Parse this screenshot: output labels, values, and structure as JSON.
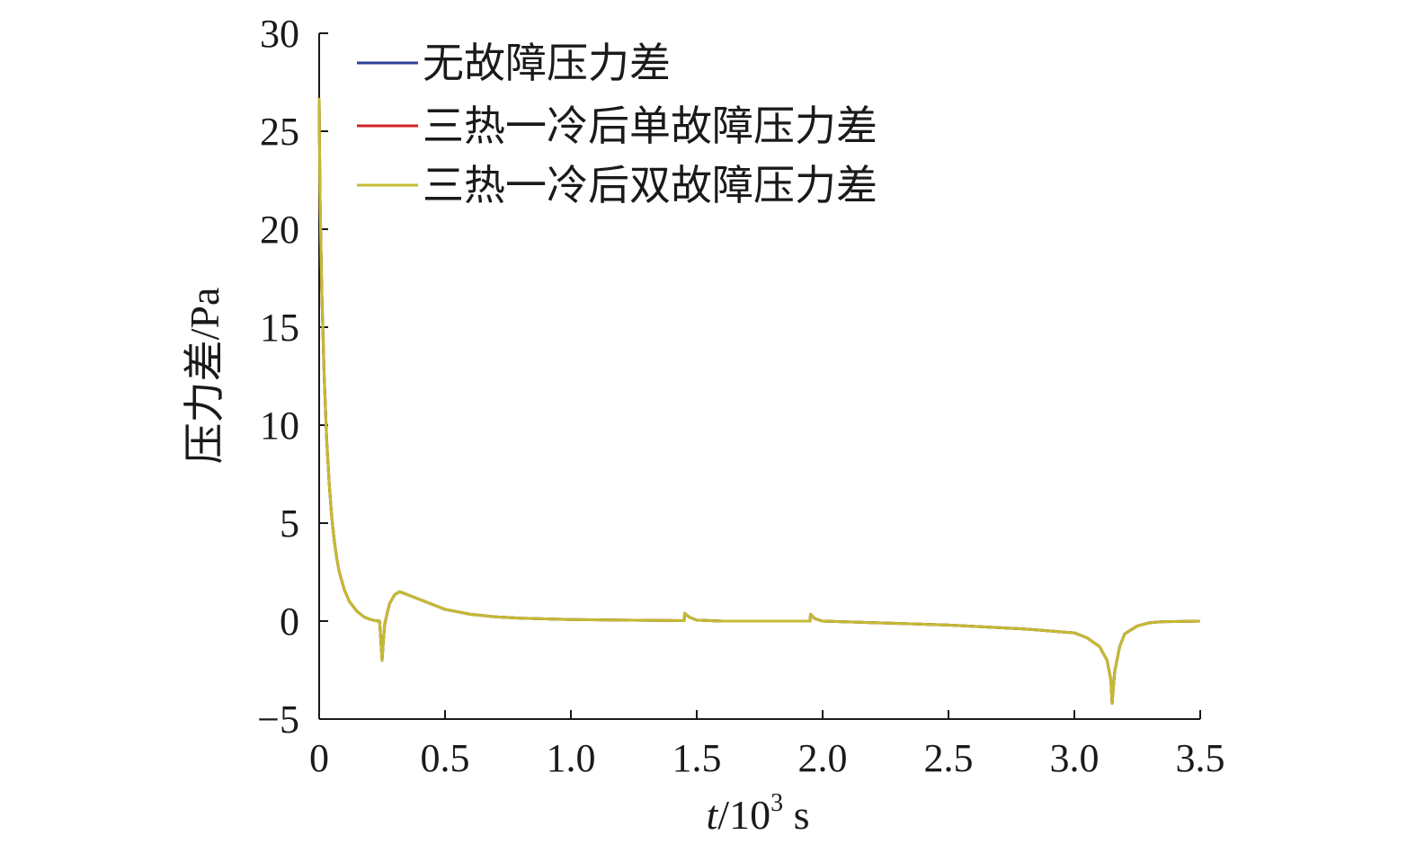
{
  "chart_data": {
    "type": "line",
    "title": "",
    "xlabel": {
      "var": "t",
      "rest": "/10",
      "sup": "3",
      "unit": " s"
    },
    "ylabel": "压力差/Pa",
    "xlim": [
      0,
      3.5
    ],
    "ylim": [
      -5,
      30
    ],
    "xticks": [
      0,
      0.5,
      1.0,
      1.5,
      2.0,
      2.5,
      3.0,
      3.5
    ],
    "xtick_labels": [
      "0",
      "0.5",
      "1.0",
      "1.5",
      "2.0",
      "2.5",
      "3.0",
      "3.5"
    ],
    "yticks": [
      -5,
      0,
      5,
      10,
      15,
      20,
      25,
      30
    ],
    "ytick_labels": [
      "−5",
      "0",
      "5",
      "10",
      "15",
      "20",
      "25",
      "30"
    ],
    "grid": false,
    "legend_position": "top-left",
    "series": [
      {
        "name": "无故障压力差",
        "color": "#2e3f97",
        "x": [
          0,
          0.003,
          0.01,
          0.02,
          0.03,
          0.04,
          0.05,
          0.06,
          0.07,
          0.08,
          0.1,
          0.12,
          0.15,
          0.18,
          0.2,
          0.22,
          0.24,
          0.245,
          0.25,
          0.255,
          0.26,
          0.27,
          0.28,
          0.3,
          0.32,
          0.35,
          0.4,
          0.5,
          0.6,
          0.7,
          0.8,
          1.0,
          1.2,
          1.4,
          1.45,
          1.452,
          1.47,
          1.5,
          1.6,
          1.8,
          1.95,
          1.952,
          1.97,
          2.0,
          2.2,
          2.5,
          2.8,
          3.0,
          3.05,
          3.1,
          3.13,
          3.145,
          3.15,
          3.16,
          3.18,
          3.2,
          3.25,
          3.3,
          3.35,
          3.4,
          3.5
        ],
        "y": [
          26.7,
          22.0,
          17.0,
          12.5,
          9.2,
          7.0,
          5.3,
          4.1,
          3.2,
          2.5,
          1.6,
          1.0,
          0.5,
          0.2,
          0.1,
          0.03,
          0.0,
          -1.0,
          -2.0,
          -1.0,
          -0.2,
          0.4,
          0.9,
          1.35,
          1.5,
          1.35,
          1.1,
          0.6,
          0.35,
          0.22,
          0.15,
          0.08,
          0.05,
          0.03,
          0.02,
          0.4,
          0.2,
          0.05,
          0.0,
          0.0,
          0.0,
          0.35,
          0.12,
          0.0,
          -0.08,
          -0.2,
          -0.4,
          -0.6,
          -0.85,
          -1.3,
          -2.0,
          -3.0,
          -4.2,
          -2.6,
          -1.3,
          -0.65,
          -0.25,
          -0.08,
          -0.03,
          -0.02,
          0.0
        ]
      },
      {
        "name": "三热一冷后单故障压力差",
        "color": "#d02027",
        "x": [
          0,
          0.003,
          0.01,
          0.02,
          0.03,
          0.04,
          0.05,
          0.06,
          0.07,
          0.08,
          0.1,
          0.12,
          0.15,
          0.18,
          0.2,
          0.22,
          0.24,
          0.245,
          0.25,
          0.255,
          0.26,
          0.27,
          0.28,
          0.3,
          0.32,
          0.35,
          0.4,
          0.5,
          0.6,
          0.7,
          0.8,
          1.0,
          1.2,
          1.4,
          1.45,
          1.452,
          1.47,
          1.5,
          1.6,
          1.8,
          1.95,
          1.952,
          1.97,
          2.0,
          2.2,
          2.5,
          2.8,
          3.0,
          3.05,
          3.1,
          3.13,
          3.145,
          3.15,
          3.16,
          3.18,
          3.2,
          3.25,
          3.3,
          3.35,
          3.4,
          3.5
        ],
        "y": [
          26.7,
          22.0,
          17.0,
          12.5,
          9.2,
          7.0,
          5.3,
          4.1,
          3.2,
          2.5,
          1.6,
          1.0,
          0.5,
          0.2,
          0.1,
          0.03,
          0.0,
          -1.0,
          -2.0,
          -1.0,
          -0.2,
          0.4,
          0.9,
          1.35,
          1.5,
          1.35,
          1.1,
          0.6,
          0.35,
          0.22,
          0.15,
          0.08,
          0.05,
          0.03,
          0.02,
          0.4,
          0.2,
          0.05,
          0.0,
          0.0,
          0.0,
          0.35,
          0.12,
          0.0,
          -0.08,
          -0.2,
          -0.4,
          -0.6,
          -0.85,
          -1.3,
          -2.0,
          -3.0,
          -4.2,
          -2.6,
          -1.3,
          -0.65,
          -0.25,
          -0.08,
          -0.03,
          -0.02,
          0.0
        ]
      },
      {
        "name": "三热一冷后双故障压力差",
        "color": "#c3bb32",
        "x": [
          0,
          0.003,
          0.01,
          0.02,
          0.03,
          0.04,
          0.05,
          0.06,
          0.07,
          0.08,
          0.1,
          0.12,
          0.15,
          0.18,
          0.2,
          0.22,
          0.24,
          0.245,
          0.25,
          0.255,
          0.26,
          0.27,
          0.28,
          0.3,
          0.32,
          0.35,
          0.4,
          0.5,
          0.6,
          0.7,
          0.8,
          1.0,
          1.2,
          1.4,
          1.45,
          1.452,
          1.47,
          1.5,
          1.6,
          1.8,
          1.95,
          1.952,
          1.97,
          2.0,
          2.2,
          2.5,
          2.8,
          3.0,
          3.05,
          3.1,
          3.13,
          3.145,
          3.15,
          3.16,
          3.18,
          3.2,
          3.25,
          3.3,
          3.35,
          3.4,
          3.5
        ],
        "y": [
          26.7,
          22.0,
          17.0,
          12.5,
          9.2,
          7.0,
          5.3,
          4.1,
          3.2,
          2.5,
          1.6,
          1.0,
          0.5,
          0.2,
          0.1,
          0.03,
          0.0,
          -1.0,
          -2.0,
          -1.0,
          -0.2,
          0.4,
          0.9,
          1.35,
          1.5,
          1.35,
          1.1,
          0.6,
          0.35,
          0.22,
          0.15,
          0.08,
          0.05,
          0.03,
          0.02,
          0.4,
          0.2,
          0.05,
          0.0,
          0.0,
          0.0,
          0.35,
          0.12,
          0.0,
          -0.08,
          -0.2,
          -0.4,
          -0.6,
          -0.85,
          -1.3,
          -2.0,
          -3.0,
          -4.2,
          -2.6,
          -1.3,
          -0.65,
          -0.25,
          -0.08,
          -0.03,
          -0.02,
          0.0
        ]
      }
    ]
  }
}
